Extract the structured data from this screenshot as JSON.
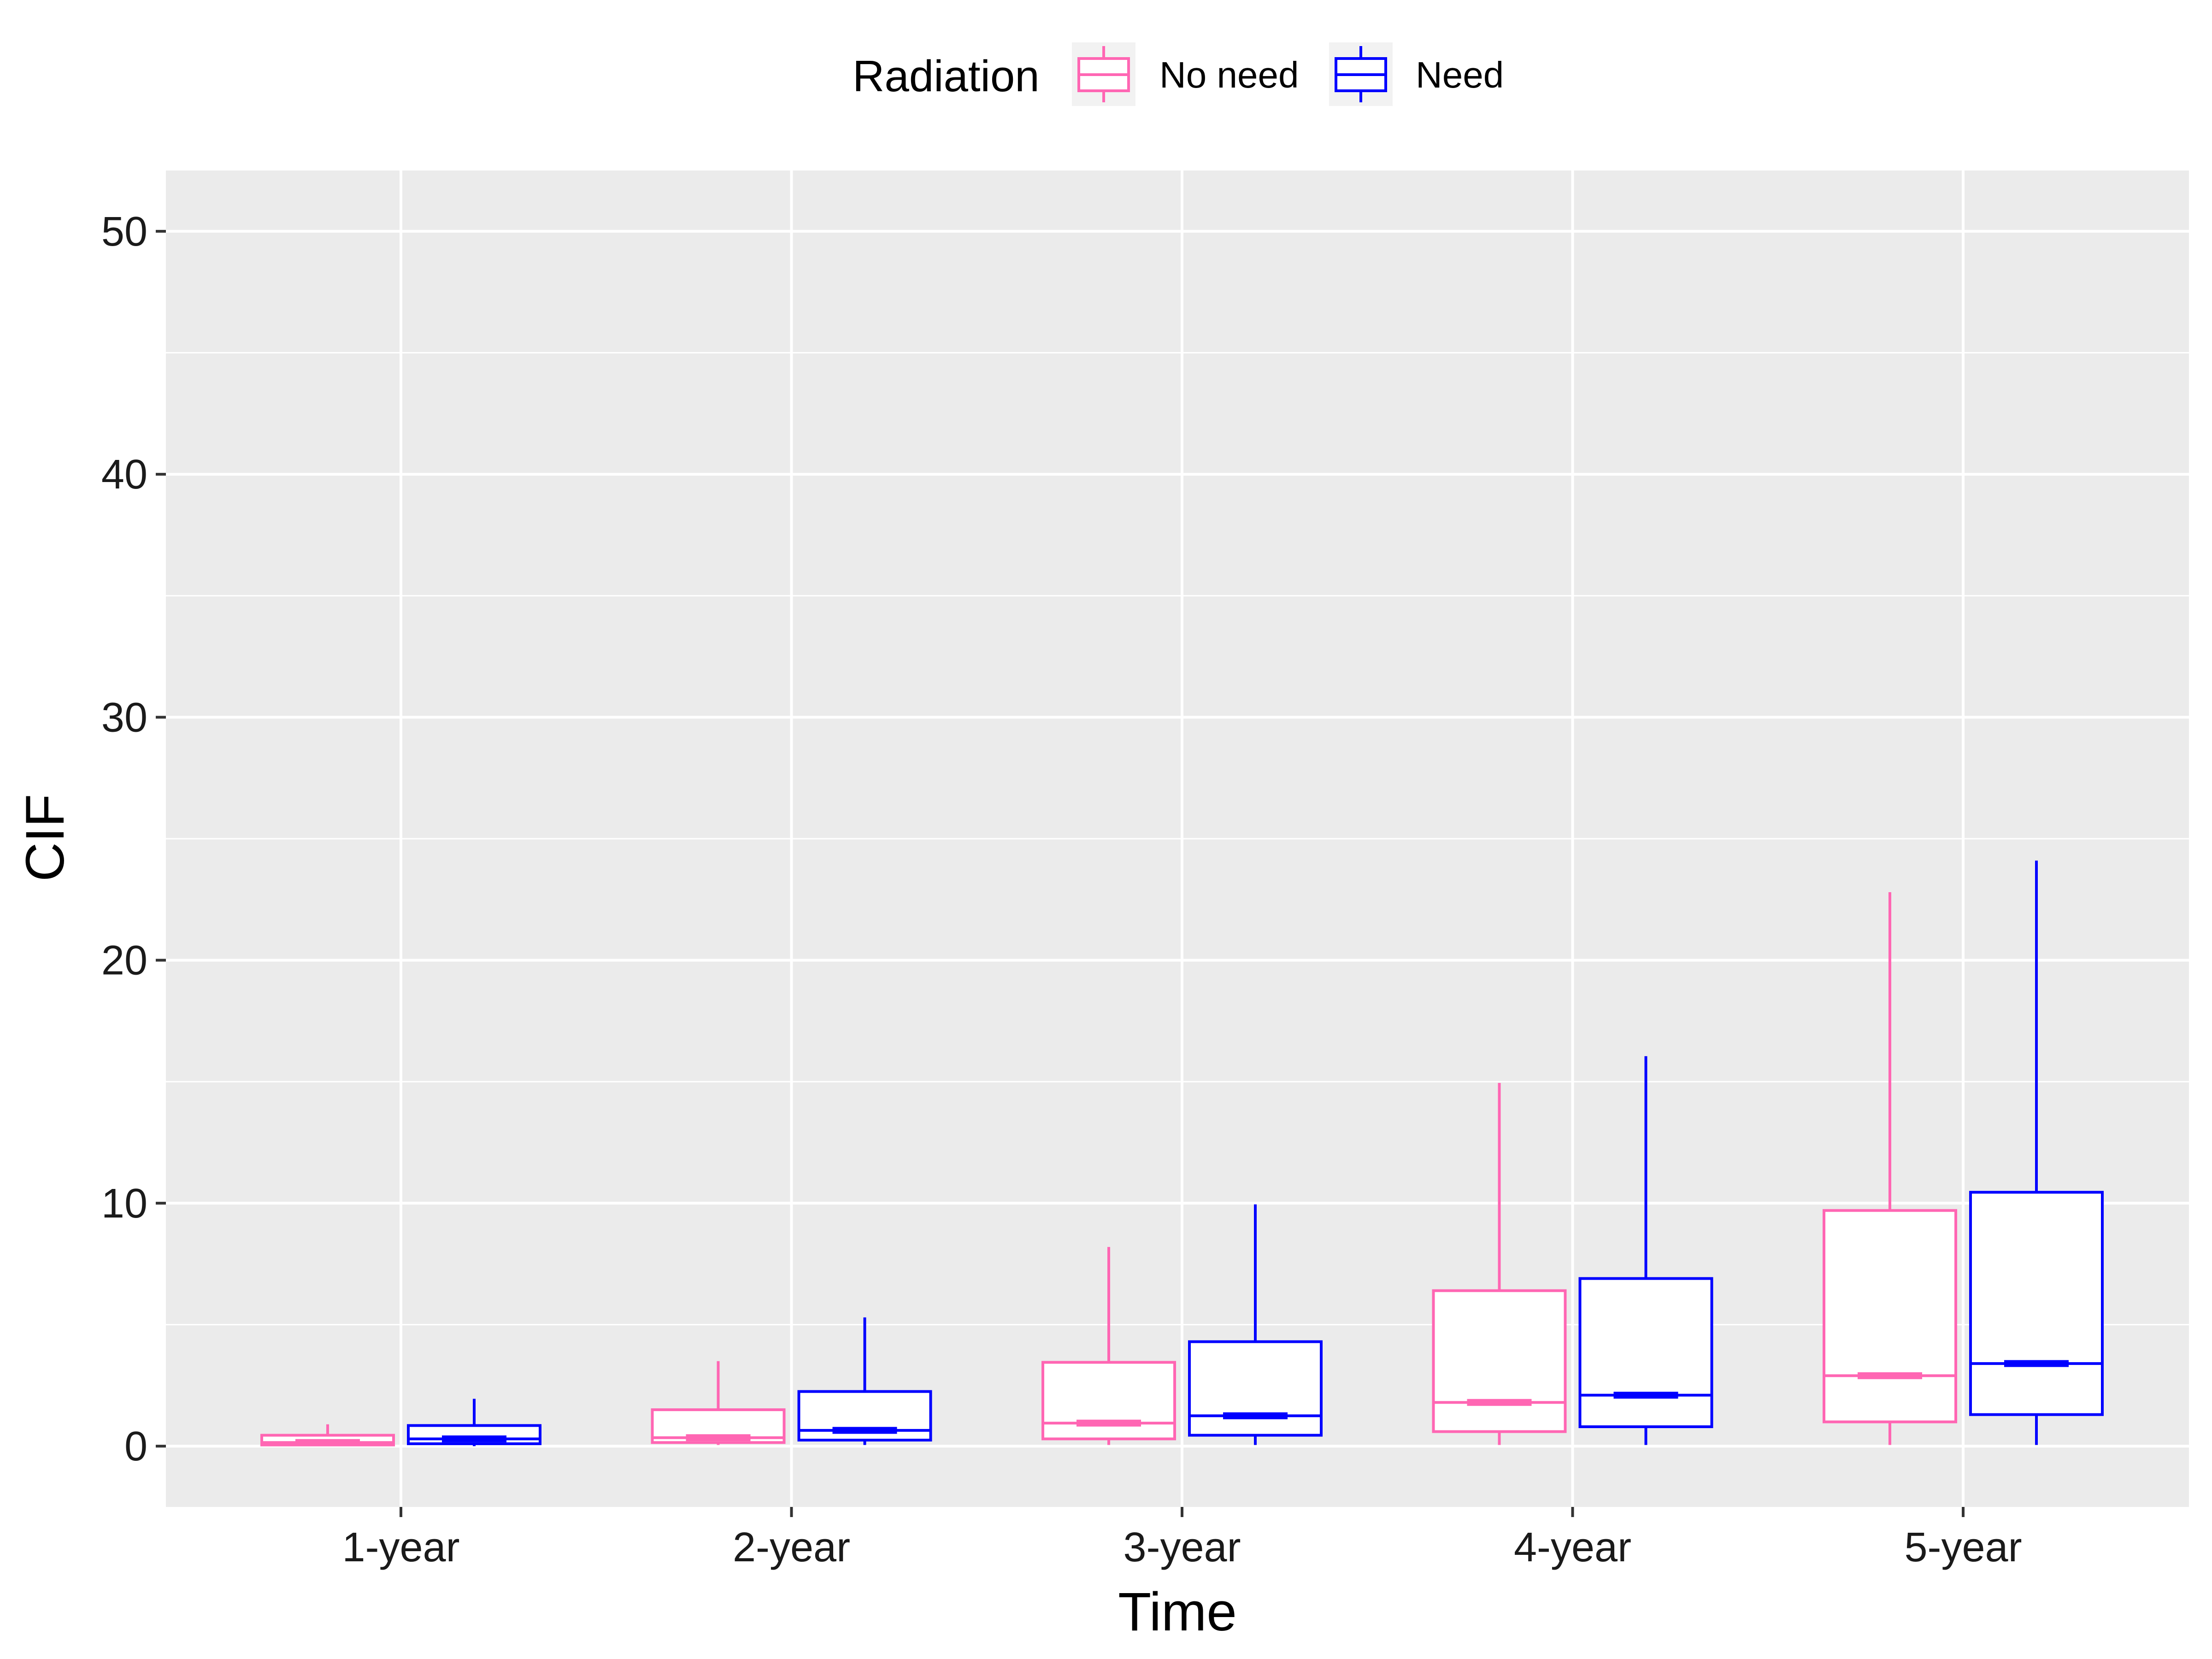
{
  "chart_data": {
    "type": "boxplot",
    "xlabel": "Time",
    "ylabel": "CIF",
    "categories": [
      "1-year",
      "2-year",
      "3-year",
      "4-year",
      "5-year"
    ],
    "ylim": [
      -2.5,
      52.5
    ],
    "yticks": [
      0,
      10,
      20,
      30,
      40,
      50
    ],
    "grid": true,
    "legend": {
      "title": "Radiation",
      "position": "top"
    },
    "series": [
      {
        "name": "No need",
        "color": "#ff66b3",
        "boxes": [
          {
            "min": 0.0,
            "q1": 0.05,
            "median": 0.15,
            "q3": 0.45,
            "max": 0.9
          },
          {
            "min": 0.05,
            "q1": 0.15,
            "median": 0.35,
            "q3": 1.5,
            "max": 3.5
          },
          {
            "min": 0.05,
            "q1": 0.3,
            "median": 0.95,
            "q3": 3.45,
            "max": 8.2
          },
          {
            "min": 0.05,
            "q1": 0.6,
            "median": 1.8,
            "q3": 6.4,
            "max": 14.95
          },
          {
            "min": 0.05,
            "q1": 1.0,
            "median": 2.9,
            "q3": 9.7,
            "max": 22.8
          }
        ]
      },
      {
        "name": "Need",
        "color": "#0000ff",
        "boxes": [
          {
            "min": 0.0,
            "q1": 0.1,
            "median": 0.3,
            "q3": 0.85,
            "max": 1.95
          },
          {
            "min": 0.05,
            "q1": 0.25,
            "median": 0.65,
            "q3": 2.25,
            "max": 5.3
          },
          {
            "min": 0.05,
            "q1": 0.45,
            "median": 1.25,
            "q3": 4.3,
            "max": 9.95
          },
          {
            "min": 0.05,
            "q1": 0.8,
            "median": 2.1,
            "q3": 6.9,
            "max": 16.05
          },
          {
            "min": 0.05,
            "q1": 1.3,
            "median": 3.4,
            "q3": 10.45,
            "max": 24.1
          }
        ]
      }
    ]
  },
  "colors": {
    "panel_background": "#ebebeb",
    "grid": "#ffffff",
    "legend_key_background": "#f2f2f2"
  }
}
